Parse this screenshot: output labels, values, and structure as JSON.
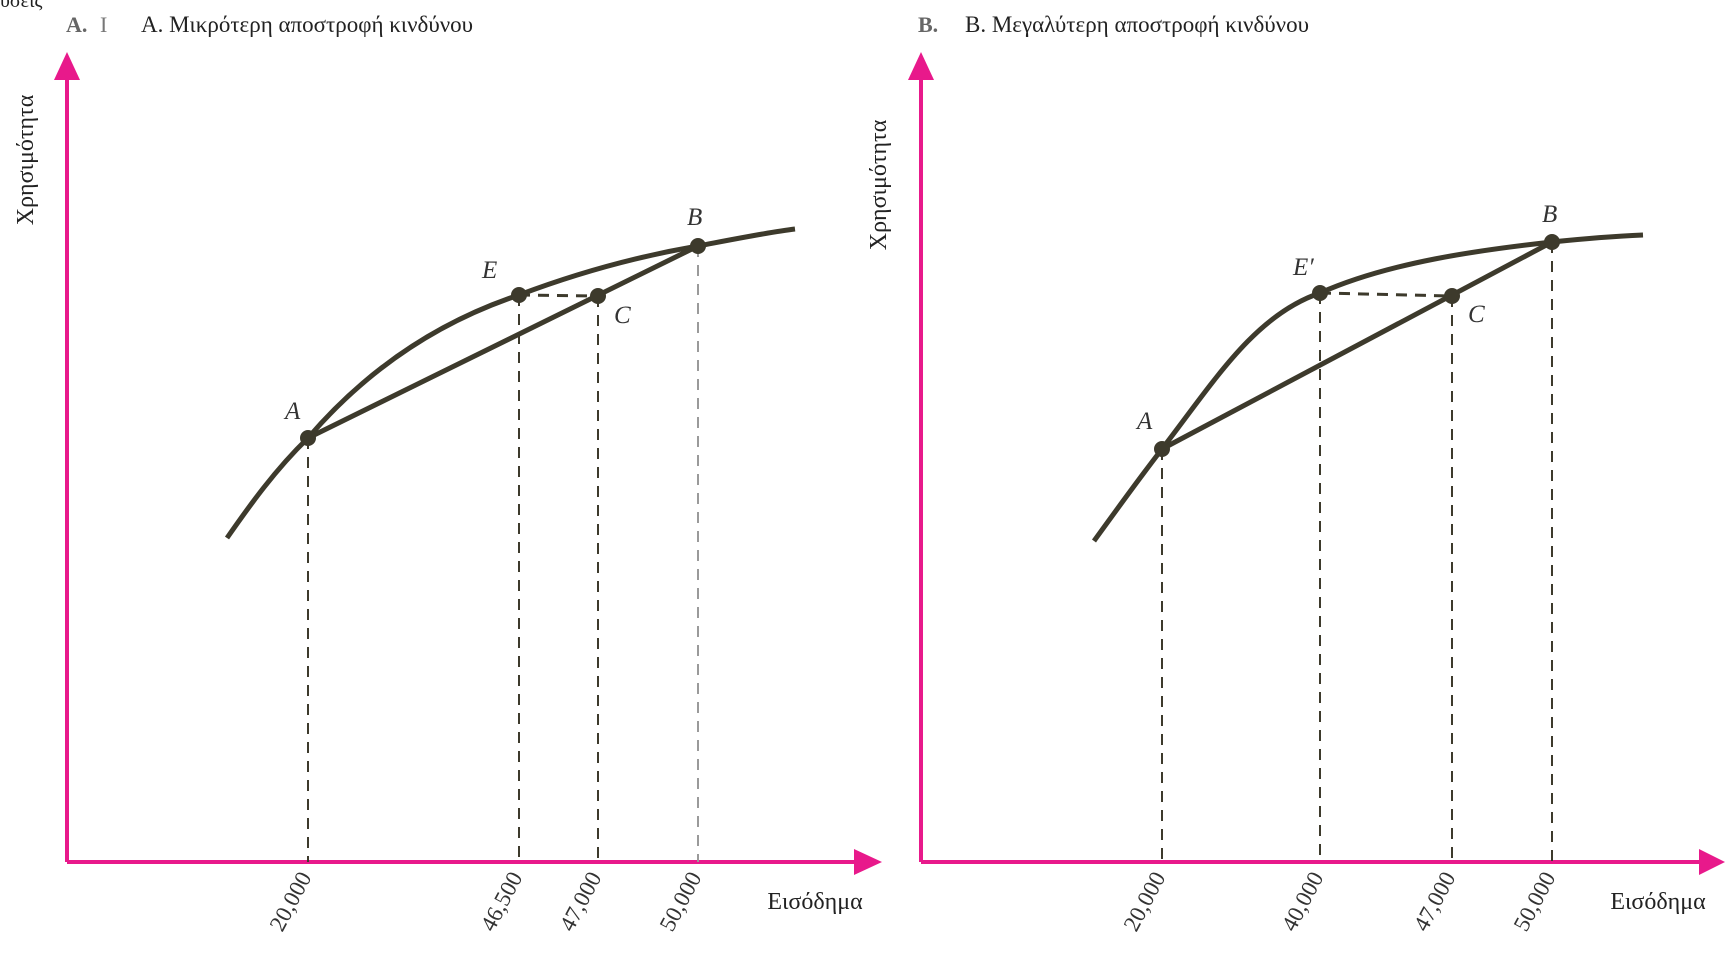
{
  "top_fragment": "υσεις",
  "panels": [
    {
      "id": "A",
      "letter": "A.",
      "letter_tail": "I",
      "title": "Α. Μικρότερη αποστροφή κινδύνου",
      "ylabel": "Χρησιμότητα",
      "xlabel": "Εισόδημα"
    },
    {
      "id": "B",
      "letter": "B.",
      "letter_tail": "",
      "title": "Β. Μεγαλύτερη αποστροφή κινδύνου",
      "ylabel": "Χρησιμότητα",
      "xlabel": "Εισόδημα"
    }
  ],
  "chart_data": [
    {
      "type": "line",
      "title": "Α. Μικρότερη αποστροφή κινδύνου",
      "xlabel": "Εισόδημα",
      "ylabel": "Χρησιμότητα",
      "tick_labels": [
        "20,000",
        "46,500",
        "47,000",
        "50,000"
      ],
      "points": [
        {
          "label": "A",
          "x": 20000
        },
        {
          "label": "E",
          "x": 46500
        },
        {
          "label": "C",
          "x": 47000
        },
        {
          "label": "B",
          "x": 50000
        }
      ],
      "series": [
        {
          "values": "concave utility curve through A, E, B"
        },
        {
          "values": "straight chord from A to B through C"
        }
      ],
      "colors": {
        "curve": "#3d3a2c",
        "axis": "#e8198b"
      }
    },
    {
      "type": "line",
      "title": "Β. Μεγαλύτερη αποστροφή κινδύνου",
      "xlabel": "Εισόδημα",
      "ylabel": "Χρησιμότητα",
      "tick_labels": [
        "20,000",
        "40,000",
        "47,000",
        "50,000"
      ],
      "points": [
        {
          "label": "A",
          "x": 20000
        },
        {
          "label": "E′",
          "x": 40000
        },
        {
          "label": "C",
          "x": 47000
        },
        {
          "label": "B",
          "x": 50000
        }
      ],
      "series": [
        {
          "values": "more concave utility curve through A, E′, B"
        },
        {
          "values": "straight chord from A to B through C"
        }
      ],
      "colors": {
        "curve": "#3d3a2c",
        "axis": "#e8198b"
      }
    }
  ]
}
